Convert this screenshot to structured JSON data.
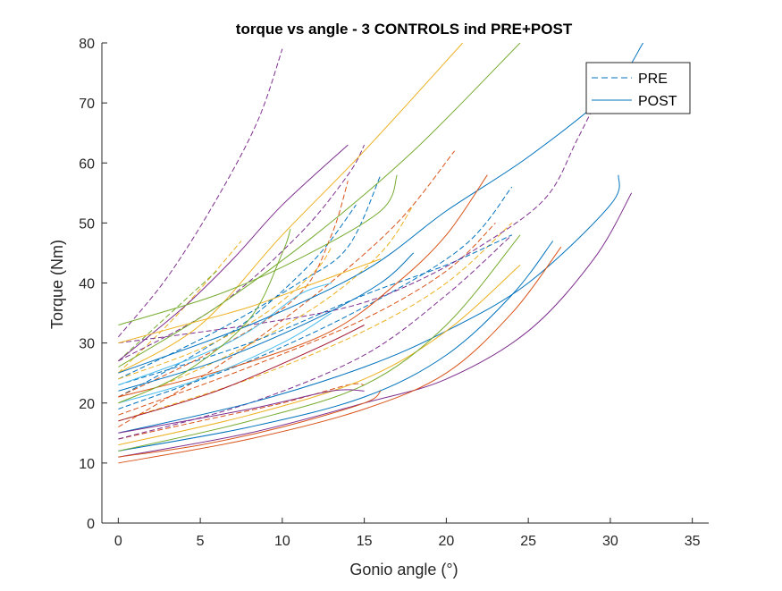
{
  "chart_data": {
    "type": "line",
    "title": "torque vs angle - 3 CONTROLS ind PRE+POST",
    "xlabel": "Gonio angle (°)",
    "ylabel": "Torque (Nm)",
    "xlim": [
      -1,
      36
    ],
    "ylim": [
      0,
      80
    ],
    "xticks": [
      0,
      5,
      10,
      15,
      20,
      25,
      30,
      35
    ],
    "yticks": [
      0,
      10,
      20,
      30,
      40,
      50,
      60,
      70,
      80
    ],
    "grid": false,
    "legend": {
      "placement": "top-right",
      "entries": [
        {
          "label": "PRE",
          "style": "dashed",
          "color": "#0072BD"
        },
        {
          "label": "POST",
          "style": "solid",
          "color": "#0072BD"
        }
      ]
    },
    "series": [
      {
        "group": "PRE",
        "color": "#7E2F8E",
        "points": [
          [
            0,
            31
          ],
          [
            3,
            41
          ],
          [
            6,
            54
          ],
          [
            8.5,
            67
          ],
          [
            10,
            79
          ]
        ]
      },
      {
        "group": "PRE",
        "color": "#0072BD",
        "points": [
          [
            0,
            21
          ],
          [
            4,
            27
          ],
          [
            8,
            34
          ],
          [
            12,
            44
          ],
          [
            14.5,
            53
          ]
        ]
      },
      {
        "group": "PRE",
        "color": "#D95319",
        "points": [
          [
            0,
            16
          ],
          [
            6,
            26
          ],
          [
            12,
            38
          ],
          [
            17,
            50
          ],
          [
            20.5,
            62
          ]
        ]
      },
      {
        "group": "PRE",
        "color": "#EDB120",
        "points": [
          [
            0,
            25
          ],
          [
            3,
            33
          ],
          [
            5,
            39
          ],
          [
            7.5,
            47
          ]
        ]
      },
      {
        "group": "PRE",
        "color": "#77AC30",
        "points": [
          [
            0,
            27
          ],
          [
            2,
            32
          ],
          [
            4,
            37
          ],
          [
            6,
            42
          ]
        ]
      },
      {
        "group": "PRE",
        "color": "#7E2F8E",
        "points": [
          [
            0,
            27
          ],
          [
            6,
            36
          ],
          [
            11,
            48
          ],
          [
            14,
            58
          ],
          [
            15,
            63
          ]
        ]
      },
      {
        "group": "PRE",
        "color": "#D95319",
        "points": [
          [
            0,
            14
          ],
          [
            5,
            17
          ],
          [
            10,
            20
          ],
          [
            14,
            23
          ],
          [
            15,
            23
          ]
        ]
      },
      {
        "group": "PRE",
        "color": "#0072BD",
        "points": [
          [
            0,
            24
          ],
          [
            6,
            32
          ],
          [
            11,
            40
          ],
          [
            14,
            46
          ],
          [
            16,
            58
          ]
        ]
      },
      {
        "group": "PRE",
        "color": "#EDB120",
        "points": [
          [
            0,
            20
          ],
          [
            6,
            27
          ],
          [
            12,
            36
          ],
          [
            16,
            45
          ],
          [
            18,
            53
          ]
        ]
      },
      {
        "group": "PRE",
        "color": "#0072BD",
        "points": [
          [
            0,
            19
          ],
          [
            8,
            27
          ],
          [
            15,
            36
          ],
          [
            21,
            46
          ],
          [
            24,
            56
          ]
        ]
      },
      {
        "group": "PRE",
        "color": "#D95319",
        "points": [
          [
            0,
            18
          ],
          [
            8,
            26
          ],
          [
            15,
            34
          ],
          [
            20,
            42
          ],
          [
            23,
            50
          ]
        ]
      },
      {
        "group": "PRE",
        "color": "#EDB120",
        "points": [
          [
            0,
            17
          ],
          [
            8,
            24
          ],
          [
            15,
            32
          ],
          [
            20,
            40
          ],
          [
            24,
            50
          ]
        ]
      },
      {
        "group": "PRE",
        "color": "#7E2F8E",
        "points": [
          [
            0,
            14
          ],
          [
            8,
            20
          ],
          [
            15,
            28
          ],
          [
            20,
            38
          ],
          [
            24,
            48
          ]
        ]
      },
      {
        "group": "PRE",
        "color": "#0072BD",
        "points": [
          [
            0,
            23
          ],
          [
            8,
            30
          ],
          [
            15,
            38
          ],
          [
            20,
            43
          ],
          [
            24,
            48
          ]
        ]
      },
      {
        "group": "PRE",
        "color": "#7E2F8E",
        "points": [
          [
            0,
            30
          ],
          [
            8,
            33
          ],
          [
            14,
            36
          ],
          [
            18,
            40
          ],
          [
            22,
            46
          ],
          [
            26,
            54
          ],
          [
            28,
            64
          ],
          [
            30,
            75
          ]
        ]
      },
      {
        "group": "PRE",
        "color": "#EDB120",
        "points": [
          [
            0,
            24
          ],
          [
            5,
            29
          ],
          [
            9,
            35
          ],
          [
            12,
            42
          ],
          [
            13,
            46
          ]
        ]
      },
      {
        "group": "PRE",
        "color": "#D95319",
        "points": [
          [
            0,
            21
          ],
          [
            6,
            29
          ],
          [
            11,
            38
          ],
          [
            13,
            48
          ],
          [
            14,
            57
          ]
        ]
      },
      {
        "group": "POST",
        "color": "#7E2F8E",
        "points": [
          [
            0,
            27
          ],
          [
            4,
            36
          ],
          [
            7,
            44
          ],
          [
            10,
            53
          ],
          [
            14,
            63
          ]
        ]
      },
      {
        "group": "POST",
        "color": "#EDB120",
        "points": [
          [
            0,
            25
          ],
          [
            5,
            33
          ],
          [
            10,
            48
          ],
          [
            15,
            62
          ],
          [
            21,
            80
          ]
        ]
      },
      {
        "group": "POST",
        "color": "#77AC30",
        "points": [
          [
            0,
            26
          ],
          [
            6,
            36
          ],
          [
            12,
            48
          ],
          [
            18,
            62
          ],
          [
            24.5,
            80
          ]
        ]
      },
      {
        "group": "POST",
        "color": "#77AC30",
        "points": [
          [
            0,
            33
          ],
          [
            6,
            38
          ],
          [
            11,
            44
          ],
          [
            16,
            52
          ],
          [
            17,
            58
          ]
        ]
      },
      {
        "group": "POST",
        "color": "#EDB120",
        "points": [
          [
            0,
            30
          ],
          [
            4,
            33
          ],
          [
            8,
            36
          ],
          [
            12,
            40
          ],
          [
            16,
            44
          ]
        ]
      },
      {
        "group": "POST",
        "color": "#4DBEEE",
        "points": [
          [
            0,
            23
          ],
          [
            5,
            28
          ],
          [
            8,
            32
          ],
          [
            11,
            38
          ],
          [
            13,
            40
          ]
        ]
      },
      {
        "group": "POST",
        "color": "#0072BD",
        "points": [
          [
            0,
            25
          ],
          [
            8,
            33
          ],
          [
            15,
            42
          ],
          [
            20,
            52
          ],
          [
            25,
            61
          ],
          [
            30,
            72
          ],
          [
            32,
            80
          ]
        ]
      },
      {
        "group": "POST",
        "color": "#D95319",
        "points": [
          [
            0,
            21
          ],
          [
            7,
            26
          ],
          [
            13,
            32
          ],
          [
            17,
            40
          ],
          [
            20,
            48
          ],
          [
            22.5,
            58
          ]
        ]
      },
      {
        "group": "POST",
        "color": "#0072BD",
        "points": [
          [
            0,
            15
          ],
          [
            8,
            20
          ],
          [
            15,
            26
          ],
          [
            20,
            32
          ],
          [
            25,
            40
          ],
          [
            30,
            53
          ],
          [
            30.5,
            58
          ]
        ]
      },
      {
        "group": "POST",
        "color": "#7E2F8E",
        "points": [
          [
            0,
            11
          ],
          [
            8,
            15
          ],
          [
            15,
            20
          ],
          [
            20,
            24
          ],
          [
            25,
            32
          ],
          [
            29,
            44
          ],
          [
            31.3,
            55
          ]
        ]
      },
      {
        "group": "POST",
        "color": "#D95319",
        "points": [
          [
            0,
            10
          ],
          [
            8,
            14
          ],
          [
            15,
            19
          ],
          [
            20,
            25
          ],
          [
            24,
            35
          ],
          [
            27,
            46
          ]
        ]
      },
      {
        "group": "POST",
        "color": "#0072BD",
        "points": [
          [
            0,
            12
          ],
          [
            8,
            16
          ],
          [
            15,
            21
          ],
          [
            20,
            28
          ],
          [
            24,
            38
          ],
          [
            26.5,
            47
          ]
        ]
      },
      {
        "group": "POST",
        "color": "#EDB120",
        "points": [
          [
            0,
            13
          ],
          [
            8,
            18
          ],
          [
            15,
            24
          ],
          [
            20,
            32
          ],
          [
            24.5,
            43
          ]
        ]
      },
      {
        "group": "POST",
        "color": "#77AC30",
        "points": [
          [
            0,
            12
          ],
          [
            8,
            17
          ],
          [
            15,
            23
          ],
          [
            20,
            33
          ],
          [
            24.5,
            48
          ]
        ]
      },
      {
        "group": "POST",
        "color": "#7E2F8E",
        "points": [
          [
            0,
            15
          ],
          [
            8,
            19
          ],
          [
            13,
            22
          ],
          [
            15,
            22
          ]
        ]
      },
      {
        "group": "POST",
        "color": "#0072BD",
        "points": [
          [
            0,
            22
          ],
          [
            6,
            27
          ],
          [
            12,
            34
          ],
          [
            16,
            40
          ],
          [
            18,
            45
          ]
        ]
      },
      {
        "group": "POST",
        "color": "#4DBEEE",
        "points": [
          [
            0,
            20
          ],
          [
            5,
            24
          ],
          [
            10,
            30
          ],
          [
            13,
            35
          ]
        ]
      },
      {
        "group": "POST",
        "color": "#A2142F",
        "points": [
          [
            0,
            17
          ],
          [
            6,
            22
          ],
          [
            12,
            29
          ],
          [
            15,
            33
          ]
        ]
      },
      {
        "group": "POST",
        "color": "#D95319",
        "points": [
          [
            0,
            11
          ],
          [
            5,
            13
          ],
          [
            10,
            16
          ],
          [
            15,
            20
          ],
          [
            16,
            22
          ]
        ]
      },
      {
        "group": "POST",
        "color": "#77AC30",
        "points": [
          [
            0,
            20
          ],
          [
            4,
            25
          ],
          [
            8,
            34
          ],
          [
            10,
            45
          ],
          [
            10.5,
            49
          ]
        ]
      }
    ]
  }
}
